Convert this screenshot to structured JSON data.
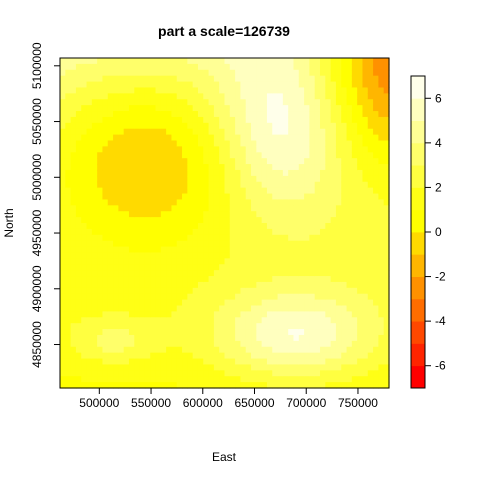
{
  "chart_data": {
    "type": "heatmap",
    "title": "part a scale=126739",
    "xlabel": "East",
    "ylabel": "North",
    "xlim": [
      462000,
      780000
    ],
    "ylim": [
      4811000,
      5107000
    ],
    "x_ticks": [
      500000,
      550000,
      600000,
      650000,
      700000,
      750000
    ],
    "y_ticks": [
      4850000,
      4900000,
      4950000,
      5000000,
      5050000,
      5100000
    ],
    "colorbar": {
      "levels": [
        -7,
        -6,
        -5,
        -4,
        -3,
        -2,
        -1,
        0,
        1,
        2,
        3,
        4,
        5,
        6,
        7
      ],
      "ticks": [
        -6,
        -4,
        -2,
        0,
        2,
        4,
        6
      ],
      "colors": [
        "#FF0000",
        "#FF2400",
        "#FF4800",
        "#FF6D00",
        "#FF9100",
        "#FFB600",
        "#FFDA00",
        "#FFFF00",
        "#FFFF15",
        "#FFFF40",
        "#FFFF6A",
        "#FFFF95",
        "#FFFFBF",
        "#FFFFEA"
      ]
    },
    "surface": {
      "nx": 62,
      "ny": 56,
      "bumps": [
        {
          "x": 690000,
          "y": 4858000,
          "sx": 55000,
          "sy": 28000,
          "amp": 4.5
        },
        {
          "x": 515000,
          "y": 4852000,
          "sx": 28000,
          "sy": 14000,
          "amp": 2.0
        },
        {
          "x": 675000,
          "y": 5040000,
          "sx": 42000,
          "sy": 50000,
          "amp": 3.2
        },
        {
          "x": 545000,
          "y": 5020000,
          "sx": 75000,
          "sy": 60000,
          "amp": -5.0
        },
        {
          "x": 790000,
          "y": 5115000,
          "sx": 55000,
          "sy": 75000,
          "amp": -8.5
        }
      ],
      "base": 3.2,
      "y_gradient_per_100k": 1.6
    }
  }
}
